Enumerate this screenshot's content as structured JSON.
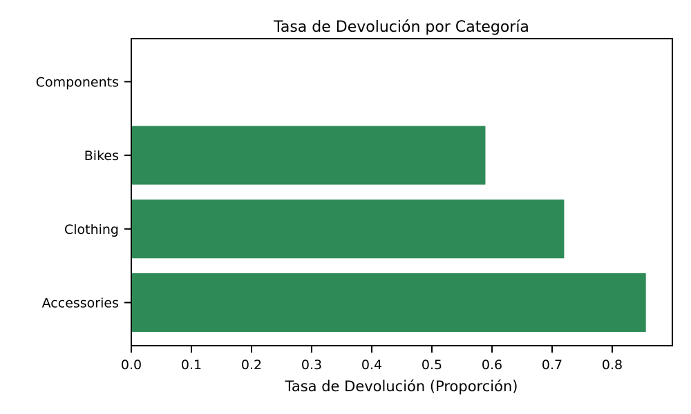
{
  "chart_data": {
    "type": "bar",
    "orientation": "horizontal",
    "title": "Tasa de Devolución por Categoría",
    "xlabel": "Tasa de Devolución (Proporción)",
    "ylabel": "",
    "categories": [
      "Accessories",
      "Clothing",
      "Bikes",
      "Components"
    ],
    "values": [
      0.856,
      0.72,
      0.589,
      0.0
    ],
    "xlim": [
      0,
      0.9
    ],
    "xticks": [
      "0.0",
      "0.1",
      "0.2",
      "0.3",
      "0.4",
      "0.5",
      "0.6",
      "0.7",
      "0.8"
    ],
    "bar_color": "#2e8b57",
    "grid": false,
    "legend": "none"
  }
}
